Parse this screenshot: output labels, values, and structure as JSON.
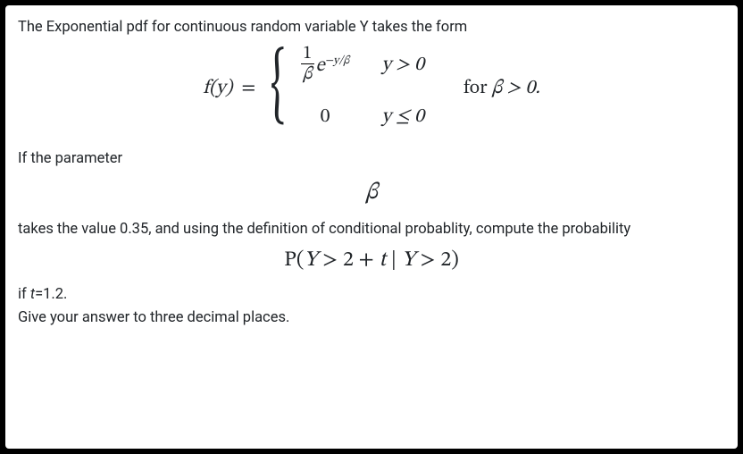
{
  "doc": {
    "intro": "The Exponential pdf for continuous random variable Y takes the form",
    "y_symbol": "Y",
    "piecewise": {
      "lhs": "f(y)",
      "frac_num": "1",
      "frac_den": "β",
      "e_base": "e",
      "exp": "−y/β",
      "cond1": "y > 0",
      "zero": "0",
      "cond2": "y ≤ 0",
      "for_text": "for",
      "for_beta": "β > 0."
    },
    "if_param": "If the parameter",
    "beta_symbol": "β",
    "takes_value": "takes the value 0.35, and using the definition of conditional probablity, compute the probability",
    "prob_expr": "P(Y > 2 + t | Y > 2)",
    "if_t": "if t=1.2.",
    "ask_decimal": "Give your answer to three decimal places.",
    "beta_value": 0.35,
    "t_value": 1.2,
    "shift": 2,
    "decimals": 3
  }
}
